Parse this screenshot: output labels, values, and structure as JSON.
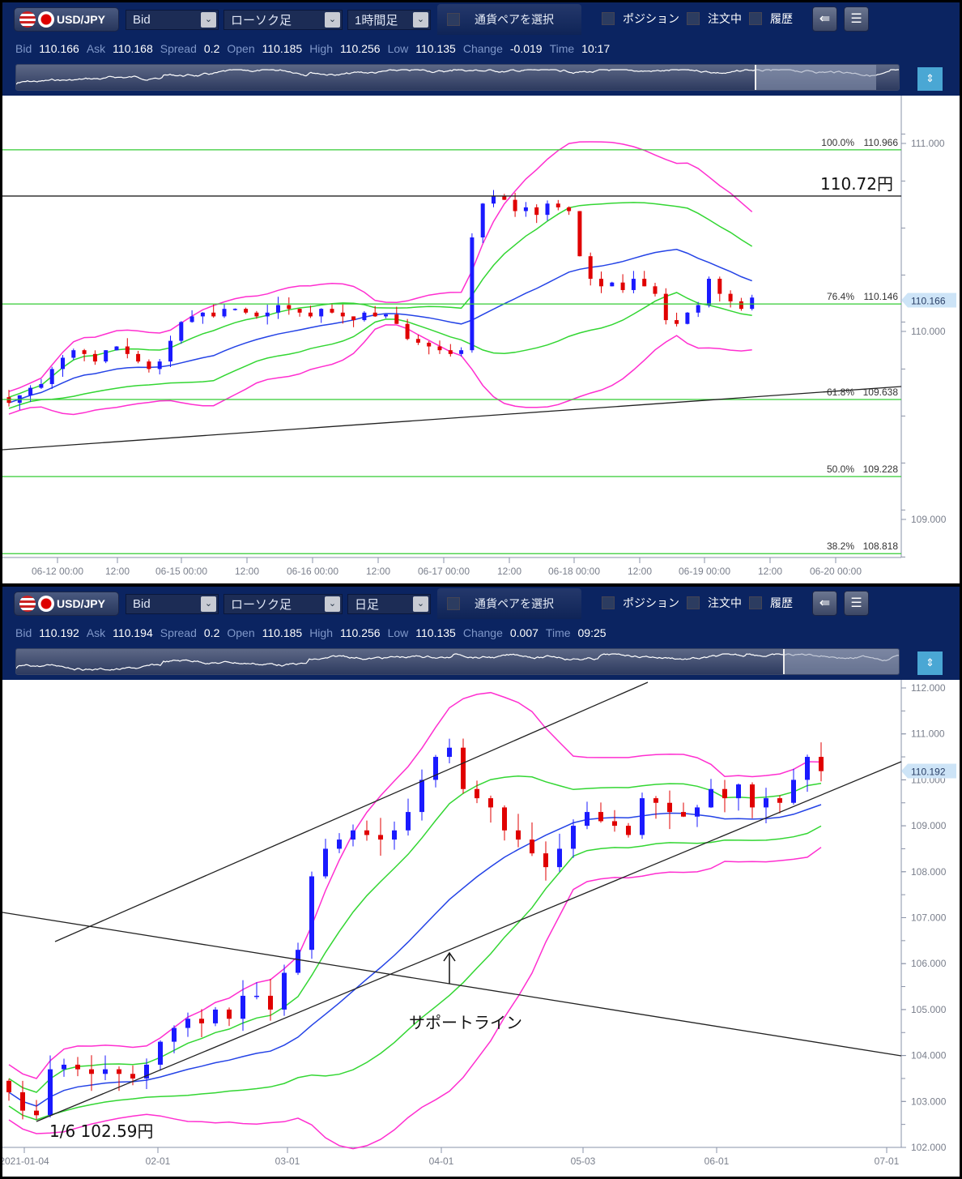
{
  "toolbar_top": {
    "pair": "USD/JPY",
    "price_type": "Bid",
    "chart_type": "ローソク足",
    "timeframe": "1時間足",
    "pair_select": "通貨ペアを選択",
    "position": "ポジション",
    "orders": "注文中",
    "history": "履歴"
  },
  "info_top": {
    "bid_label": "Bid",
    "bid": "110.166",
    "ask_label": "Ask",
    "ask": "110.168",
    "spread_label": "Spread",
    "spread": "0.2",
    "open_label": "Open",
    "open": "110.185",
    "high_label": "High",
    "high": "110.256",
    "low_label": "Low",
    "low": "110.135",
    "change_label": "Change",
    "change": "-0.019",
    "time_label": "Time",
    "time": "10:17"
  },
  "toolbar_bottom": {
    "pair": "USD/JPY",
    "price_type": "Bid",
    "chart_type": "ローソク足",
    "timeframe": "日足",
    "pair_select": "通貨ペアを選択",
    "position": "ポジション",
    "orders": "注文中",
    "history": "履歴"
  },
  "info_bottom": {
    "bid_label": "Bid",
    "bid": "110.192",
    "ask_label": "Ask",
    "ask": "110.194",
    "spread_label": "Spread",
    "spread": "0.2",
    "open_label": "Open",
    "open": "110.185",
    "high_label": "High",
    "high": "110.256",
    "low_label": "Low",
    "low": "110.135",
    "change_label": "Change",
    "change": "0.007",
    "time_label": "Time",
    "time": "09:25"
  },
  "chart_data": [
    {
      "type": "candlestick",
      "timeframe": "1H",
      "y_ticks": [
        "111.000",
        "110.000",
        "109.000"
      ],
      "y_range": [
        108.8,
        111.23
      ],
      "x_ticks": [
        "06-12 00:00",
        "12:00",
        "06-15 00:00",
        "12:00",
        "06-16 00:00",
        "12:00",
        "06-17 00:00",
        "12:00",
        "06-18 00:00",
        "12:00",
        "06-19 00:00",
        "12:00",
        "06-20 00:00"
      ],
      "current_price": "110.166",
      "fib_levels": [
        {
          "pct": "100.0%",
          "price": "110.966",
          "value": 110.966
        },
        {
          "pct": "76.4%",
          "price": "110.146",
          "value": 110.146
        },
        {
          "pct": "61.8%",
          "price": "109.638",
          "value": 109.638
        },
        {
          "pct": "50.0%",
          "price": "109.228",
          "value": 109.228
        },
        {
          "pct": "38.2%",
          "price": "108.818",
          "value": 108.818
        }
      ],
      "resistance_line": {
        "label": "110.72円",
        "value": 110.72
      },
      "closes": [
        109.62,
        109.66,
        109.7,
        109.72,
        109.8,
        109.86,
        109.9,
        109.88,
        109.84,
        109.9,
        109.92,
        109.88,
        109.84,
        109.8,
        109.84,
        109.95,
        110.05,
        110.08,
        110.1,
        110.08,
        110.12,
        110.12,
        110.1,
        110.08,
        110.1,
        110.14,
        110.12,
        110.1,
        110.08,
        110.12,
        110.1,
        110.08,
        110.06,
        110.1,
        110.08,
        110.09,
        110.04,
        109.96,
        109.94,
        109.92,
        109.9,
        109.88,
        109.9,
        110.5,
        110.68,
        110.72,
        110.7,
        110.64,
        110.66,
        110.62,
        110.68,
        110.66,
        110.64,
        110.4,
        110.28,
        110.24,
        110.26,
        110.22,
        110.28,
        110.24,
        110.2,
        110.06,
        110.04,
        110.1,
        110.14,
        110.28,
        110.2,
        110.16,
        110.12,
        110.18
      ]
    },
    {
      "type": "candlestick",
      "timeframe": "1D",
      "y_ticks": [
        "112.000",
        "111.000",
        "110.000",
        "109.000",
        "108.000",
        "107.000",
        "106.000",
        "105.000",
        "104.000",
        "103.000",
        "102.000"
      ],
      "y_range": [
        102,
        112
      ],
      "x_ticks": [
        "2021-01-04",
        "02-01",
        "03-01",
        "04-01",
        "05-03",
        "06-01",
        "07-01"
      ],
      "current_price": "110.192",
      "annotations": {
        "low": "1/6  102.59円",
        "support": "サポートライン"
      },
      "closes": [
        103.2,
        102.8,
        102.7,
        103.7,
        103.8,
        103.7,
        103.6,
        103.7,
        103.6,
        103.5,
        103.8,
        104.3,
        104.6,
        104.8,
        104.7,
        105.0,
        104.8,
        105.3,
        105.3,
        105.0,
        105.8,
        106.3,
        107.9,
        108.5,
        108.7,
        108.9,
        108.8,
        108.7,
        108.9,
        109.3,
        110.0,
        110.5,
        110.7,
        109.8,
        109.6,
        109.4,
        108.9,
        108.7,
        108.4,
        108.1,
        108.5,
        109.0,
        109.3,
        109.1,
        109.0,
        108.8,
        109.6,
        109.5,
        109.3,
        109.2,
        109.4,
        109.8,
        109.6,
        109.9,
        109.4,
        109.6,
        109.5,
        110.0,
        110.5,
        110.19
      ]
    }
  ],
  "colors": {
    "up": "#1a1aff",
    "down": "#e00000",
    "mid": "#2443e6",
    "band1": "#33d633",
    "band2": "#ff2fd0",
    "fib": "#33cc33",
    "header": "#0b2461"
  }
}
